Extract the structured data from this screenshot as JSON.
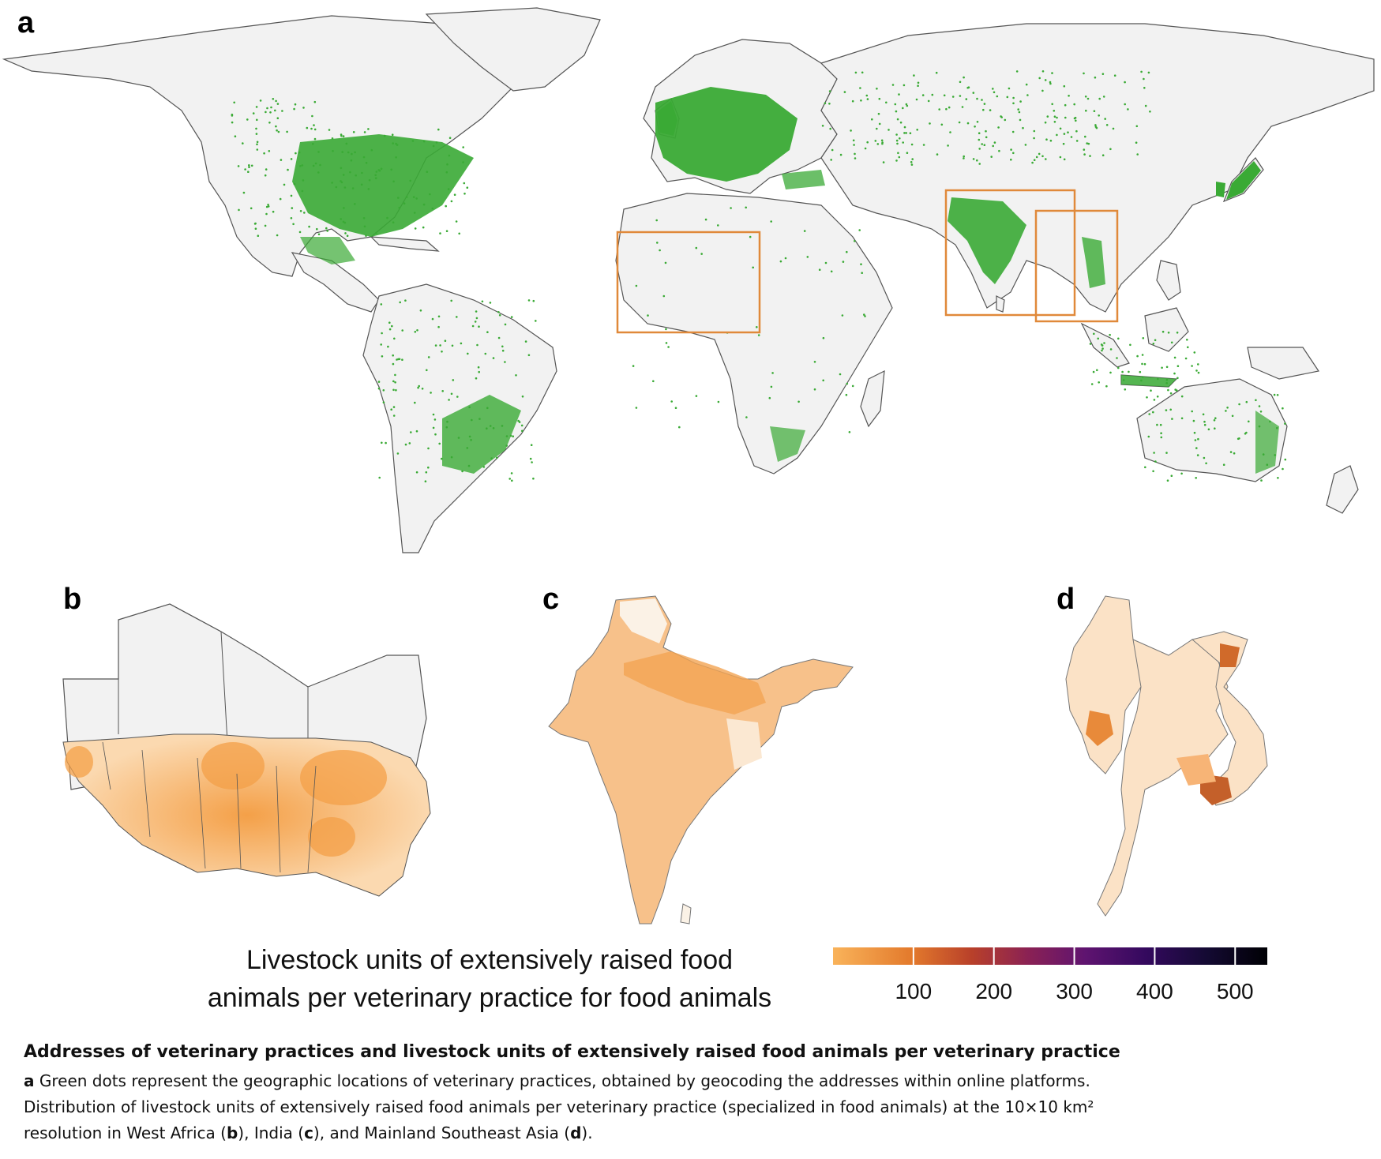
{
  "panels": {
    "a": "a",
    "b": "b",
    "c": "c",
    "d": "d"
  },
  "colors": {
    "land": "#f2f2f2",
    "border": "#555555",
    "vet_dots": "#3aaa35",
    "inset_box": "#e0893a",
    "scale_low": "#f9b35a",
    "scale_high": "#000004"
  },
  "legend": {
    "title_line1": "Livestock units of extensively raised food",
    "title_line2": "animals per veterinary practice for food animals",
    "ticks": [
      "100",
      "200",
      "300",
      "400",
      "500"
    ],
    "tick_values": [
      100,
      200,
      300,
      400,
      500
    ],
    "scale_min": 0,
    "scale_max": 540,
    "colormap": "inferno (reversed)"
  },
  "caption": {
    "title": "Addresses of veterinary practices and livestock units of extensively raised food animals per veterinary practice",
    "a_marker": "a",
    "a_text": " Green dots represent the geographic locations of veterinary practices, obtained by geocoding the addresses within online platforms.",
    "line2": "Distribution of livestock units of extensively raised food animals per veterinary practice (specialized in food animals) at the 10×10 km²",
    "line3_pre": "resolution in West Africa (",
    "b_marker": "b",
    "line3_mid1": "), India (",
    "c_marker": "c",
    "line3_mid2": "), and Mainland Southeast Asia (",
    "d_marker": "d",
    "line3_post": ")."
  },
  "insets": [
    {
      "name": "west-africa-box",
      "region": "West Africa"
    },
    {
      "name": "india-box",
      "region": "India"
    },
    {
      "name": "southeast-asia-box",
      "region": "Mainland Southeast Asia"
    }
  ]
}
